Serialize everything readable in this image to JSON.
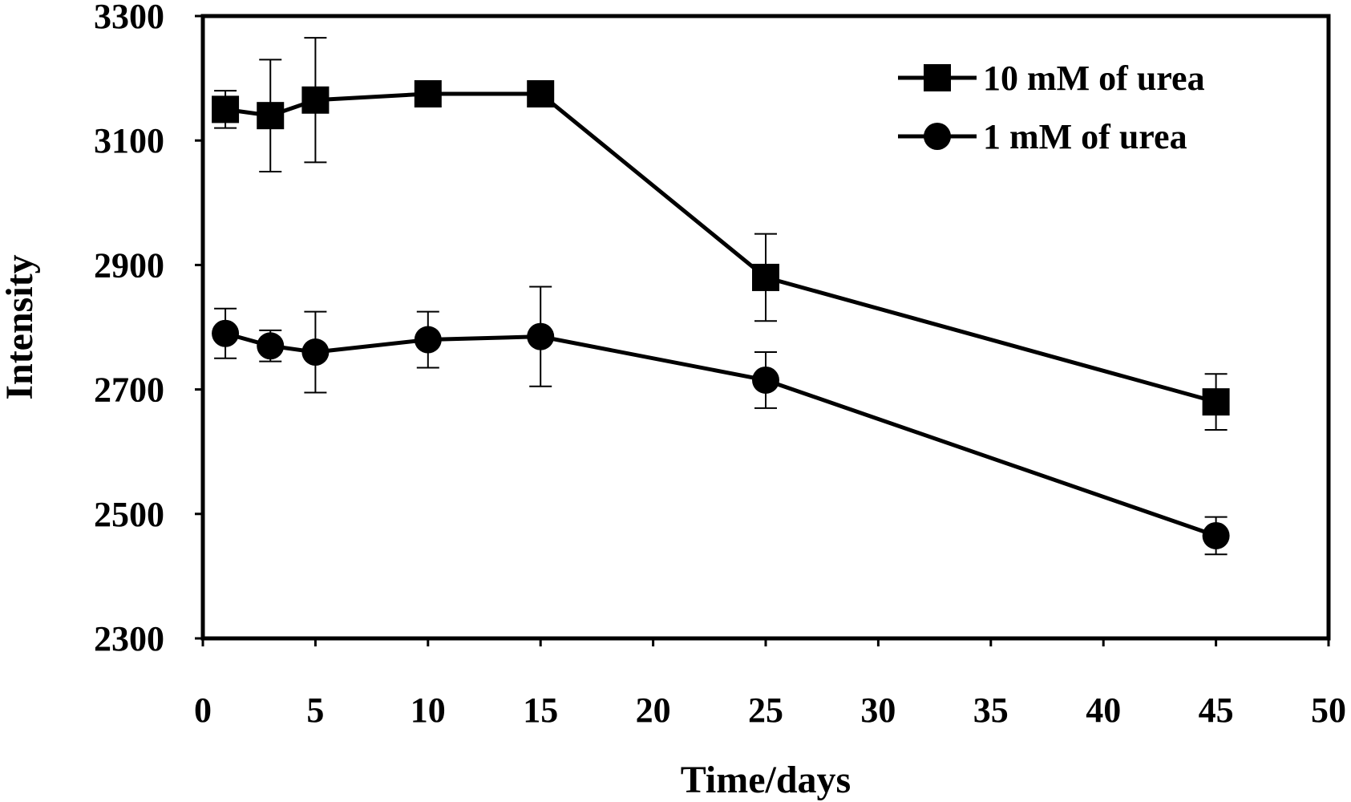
{
  "chart_data": {
    "type": "line",
    "title": "",
    "xlabel": "Time/days",
    "ylabel": "Intensity",
    "xlim": [
      0,
      50
    ],
    "ylim": [
      2300,
      3300
    ],
    "xticks": [
      0,
      5,
      10,
      15,
      20,
      25,
      30,
      35,
      40,
      45,
      50
    ],
    "yticks": [
      2300,
      2500,
      2700,
      2900,
      3100,
      3300
    ],
    "xtick_labels": [
      "0",
      "5",
      "10",
      "15",
      "20",
      "25",
      "30",
      "35",
      "40",
      "45",
      "50"
    ],
    "ytick_labels": [
      "2300",
      "2500",
      "2700",
      "2900",
      "3100",
      "3300"
    ],
    "grid": false,
    "legend_position": "top-right",
    "x": [
      1,
      3,
      5,
      10,
      15,
      25,
      45
    ],
    "series": [
      {
        "name": "10 mM of urea",
        "marker": "square",
        "color": "#000000",
        "values": [
          3150,
          3140,
          3165,
          3175,
          3175,
          2880,
          2680
        ],
        "errors": [
          30,
          90,
          100,
          10,
          10,
          70,
          45
        ]
      },
      {
        "name": "1 mM of urea",
        "marker": "circle",
        "color": "#000000",
        "values": [
          2790,
          2770,
          2760,
          2780,
          2785,
          2715,
          2465
        ],
        "errors": [
          40,
          25,
          65,
          45,
          80,
          45,
          30
        ]
      }
    ]
  }
}
